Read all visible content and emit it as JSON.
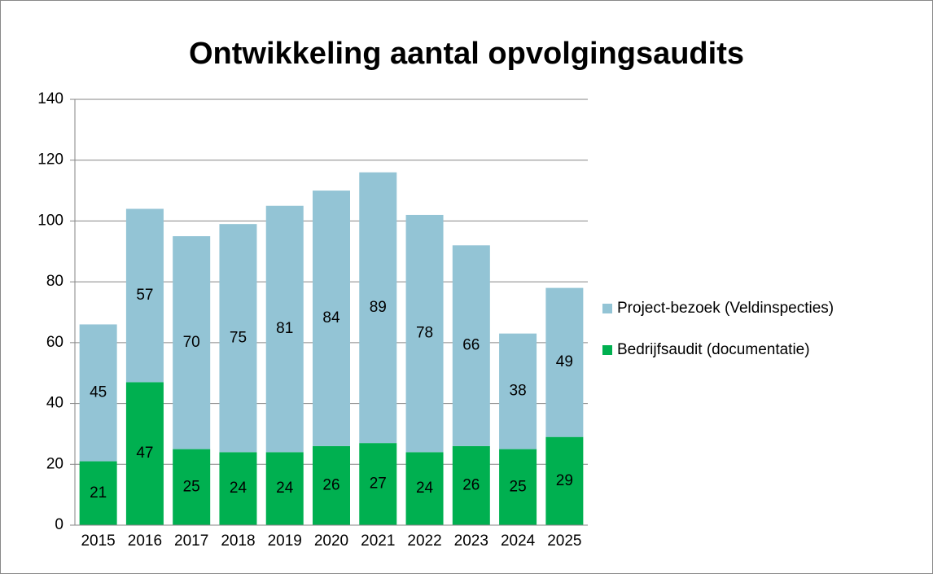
{
  "chart_data": {
    "type": "stacked_bar",
    "title": "Ontwikkeling aantal opvolgingsaudits",
    "categories": [
      "2015",
      "2016",
      "2017",
      "2018",
      "2019",
      "2020",
      "2021",
      "2022",
      "2023",
      "2024",
      "2025"
    ],
    "series": [
      {
        "name": "Bedrijfsaudit (documentatie)",
        "color": "#00b050",
        "values": [
          21,
          47,
          25,
          24,
          24,
          26,
          27,
          24,
          26,
          25,
          29
        ]
      },
      {
        "name": "Project-bezoek (Veldinspecties)",
        "color": "#93c4d5",
        "values": [
          45,
          57,
          70,
          75,
          81,
          84,
          89,
          78,
          66,
          38,
          49
        ]
      }
    ],
    "ylim": [
      0,
      140
    ],
    "yticks": [
      0,
      20,
      40,
      60,
      80,
      100,
      120,
      140
    ],
    "grid": true,
    "legend": "right"
  }
}
